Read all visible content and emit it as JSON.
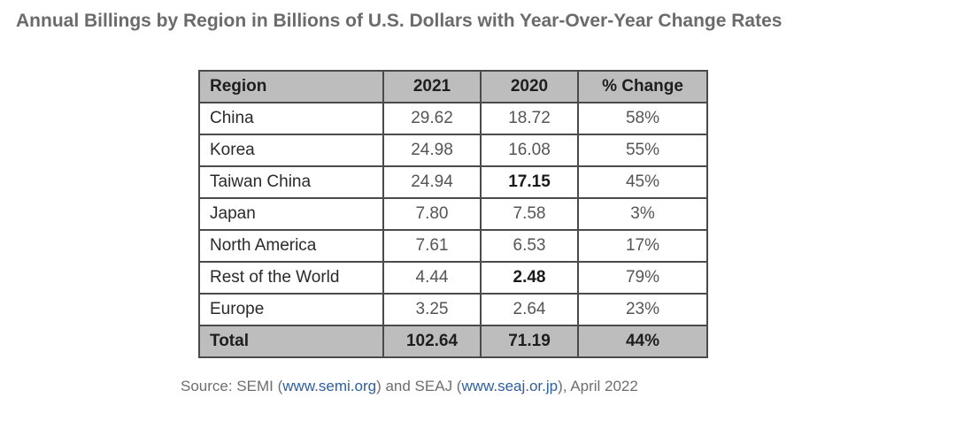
{
  "title": "Annual Billings by Region in Billions of U.S. Dollars with Year-Over-Year Change Rates",
  "table": {
    "headers": [
      "Region",
      "2021",
      "2020",
      "% Change"
    ],
    "rows": [
      {
        "region": "China",
        "y2021": "29.62",
        "y2020": "18.72",
        "change": "58%"
      },
      {
        "region": "Korea",
        "y2021": "24.98",
        "y2020": "16.08",
        "change": "55%"
      },
      {
        "region": "Taiwan China",
        "y2021": "24.94",
        "y2020": "17.15",
        "change": "45%"
      },
      {
        "region": "Japan",
        "y2021": "7.80",
        "y2020": "7.58",
        "change": "3%"
      },
      {
        "region": "North America",
        "y2021": "7.61",
        "y2020": "6.53",
        "change": "17%"
      },
      {
        "region": "Rest of the World",
        "y2021": "4.44",
        "y2020": "2.48",
        "change": "79%"
      },
      {
        "region": "Europe",
        "y2021": "3.25",
        "y2020": "2.64",
        "change": "23%"
      }
    ],
    "total": {
      "region": "Total",
      "y2021": "102.64",
      "y2020": "71.19",
      "change": "44%"
    }
  },
  "source": {
    "prefix": "Source: SEMI (",
    "link1": "www.semi.org",
    "middle": ") and SEAJ (",
    "link2": "www.seaj.or.jp",
    "suffix": "), April 2022"
  },
  "colors": {
    "header_bg": "#bdbdbd",
    "border": "#4a4a4a",
    "link": "#2e5f9e",
    "title": "#6b6b6b"
  }
}
